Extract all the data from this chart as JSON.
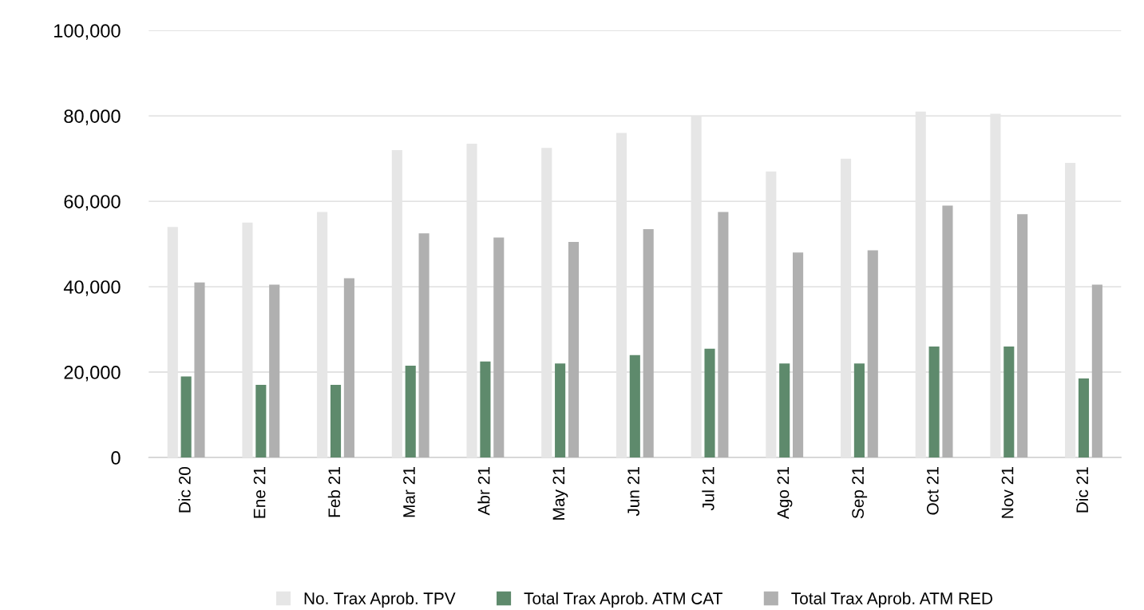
{
  "chart_data": {
    "type": "bar",
    "categories": [
      "Dic 20",
      "Ene 21",
      "Feb 21",
      "Mar 21",
      "Abr 21",
      "May 21",
      "Jun 21",
      "Jul 21",
      "Ago 21",
      "Sep 21",
      "Oct 21",
      "Nov 21",
      "Dic 21"
    ],
    "series": [
      {
        "name": "No. Trax Aprob. TPV",
        "color": "#e6e6e6",
        "values": [
          54000,
          55000,
          57500,
          72000,
          73500,
          72500,
          76000,
          80000,
          67000,
          70000,
          81000,
          80500,
          69000
        ]
      },
      {
        "name": "Total Trax Aprob. ATM CAT",
        "color": "#5e8a6c",
        "values": [
          19000,
          17000,
          17000,
          21500,
          22500,
          22000,
          24000,
          25500,
          22000,
          22000,
          26000,
          26000,
          18500
        ]
      },
      {
        "name": "Total Trax Aprob. ATM RED",
        "color": "#b0b0b0",
        "values": [
          41000,
          40500,
          42000,
          52500,
          51500,
          50500,
          53500,
          57500,
          48000,
          48500,
          59000,
          57000,
          40500
        ]
      }
    ],
    "ylim": [
      0,
      100000
    ],
    "yticks": [
      {
        "value": 0,
        "label": "0"
      },
      {
        "value": 20000,
        "label": "20,000"
      },
      {
        "value": 40000,
        "label": "40,000"
      },
      {
        "value": 60000,
        "label": "60,000"
      },
      {
        "value": 80000,
        "label": "80,000"
      },
      {
        "value": 100000,
        "label": "100,000"
      }
    ],
    "grid": "y",
    "legend": "bottom"
  }
}
